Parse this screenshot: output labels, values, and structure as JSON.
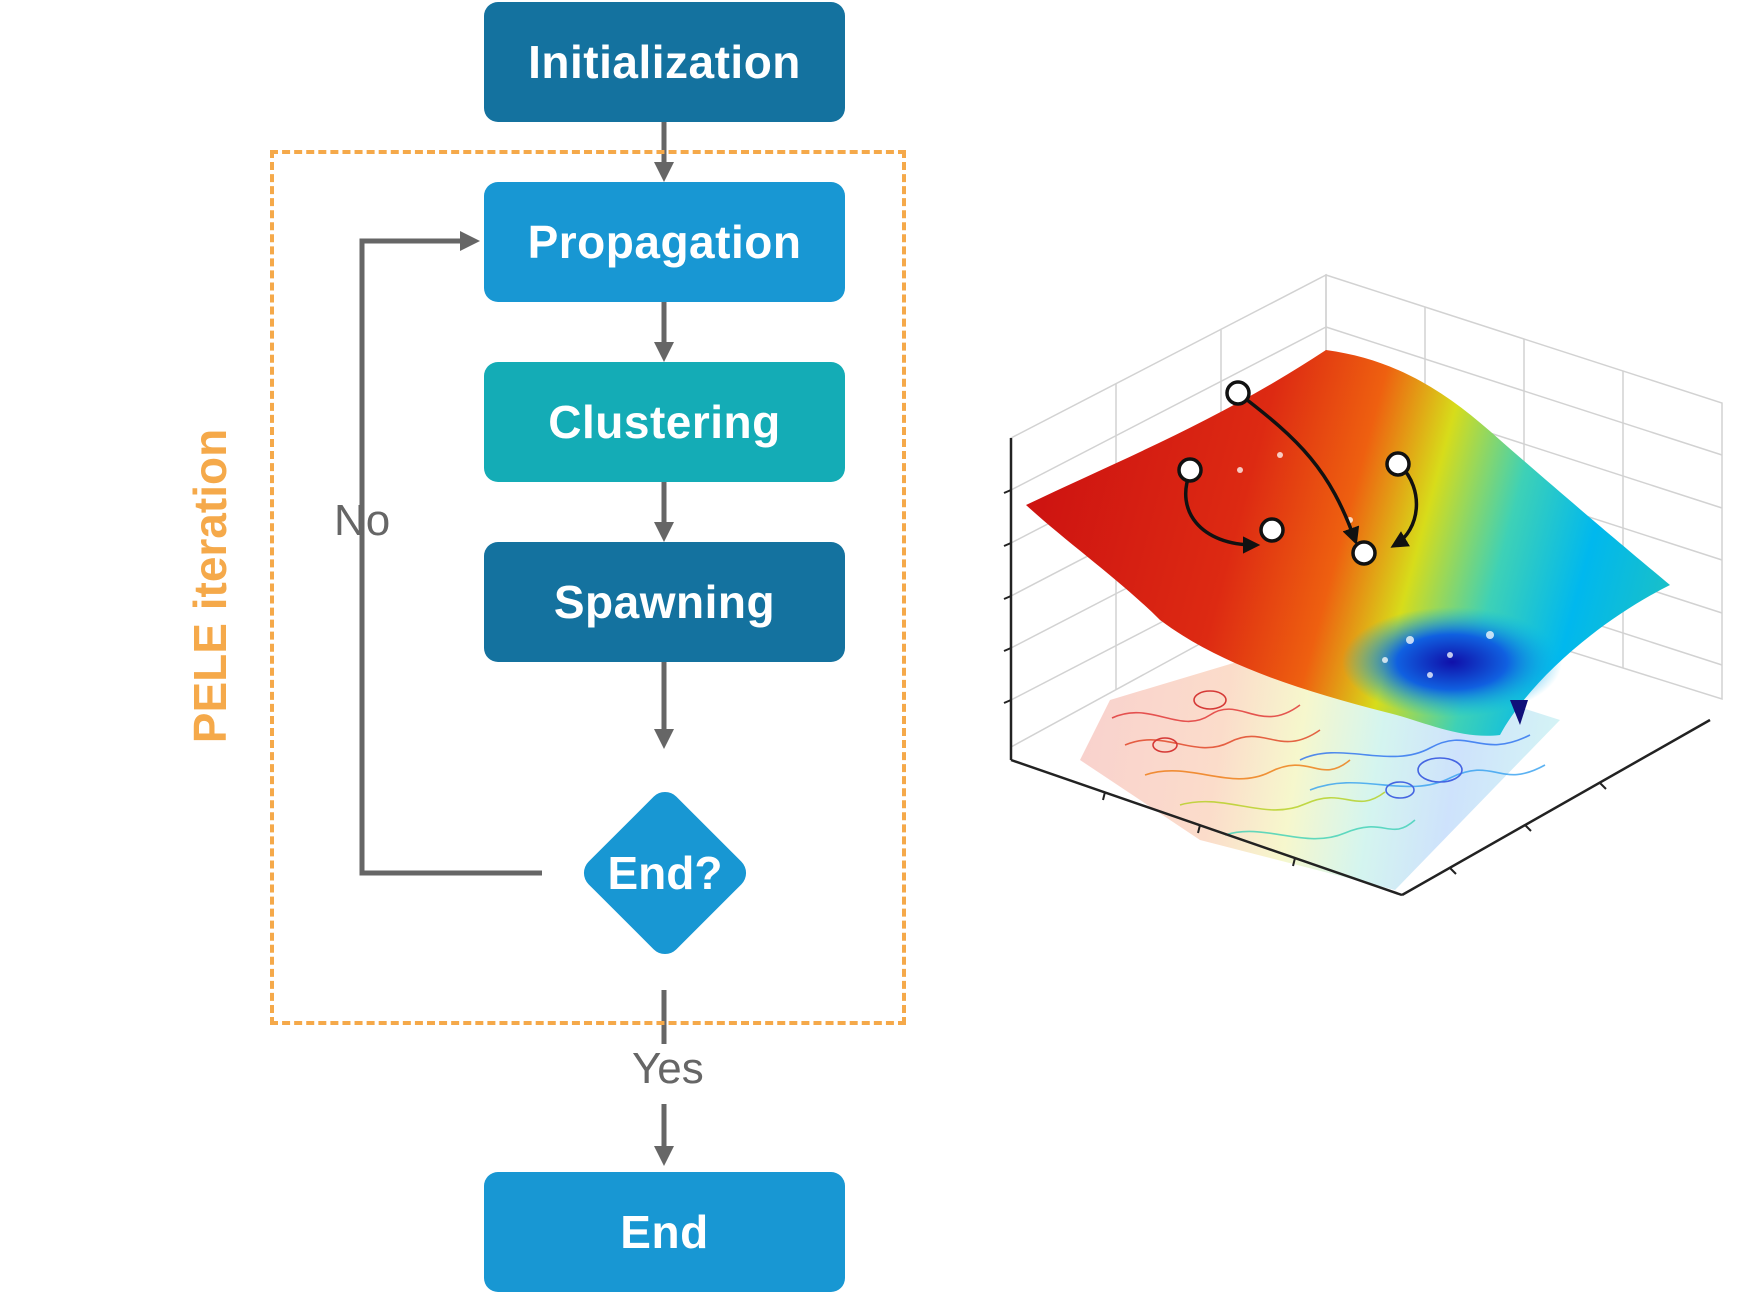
{
  "flowchart": {
    "steps": {
      "initialization": "Initialization",
      "propagation": "Propagation",
      "clustering": "Clustering",
      "spawning": "Spawning",
      "decision": "End?",
      "end": "End"
    },
    "loop_label": "PELE iteration",
    "edge_labels": {
      "no": "No",
      "yes": "Yes"
    },
    "colors": {
      "dark_blue": "#14729f",
      "blue": "#1897d3",
      "teal": "#14acb6",
      "loop_frame": "#f5a94a",
      "arrow": "#666666"
    }
  },
  "energy_landscape": {
    "colormap": [
      "#2222dd",
      "#00b8ee",
      "#3ed1b6",
      "#d7dc1a",
      "#ee6010",
      "#cc1111"
    ]
  }
}
